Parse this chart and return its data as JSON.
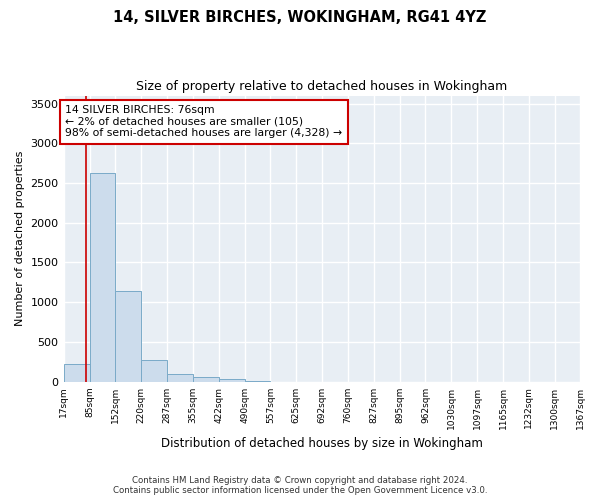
{
  "title": "14, SILVER BIRCHES, WOKINGHAM, RG41 4YZ",
  "subtitle": "Size of property relative to detached houses in Wokingham",
  "xlabel": "Distribution of detached houses by size in Wokingham",
  "ylabel": "Number of detached properties",
  "bar_color": "#ccdcec",
  "bar_edge_color": "#7aaac8",
  "background_color": "#e8eef4",
  "grid_color": "#ffffff",
  "annotation_line_color": "#cc0000",
  "annotation_box_color": "#cc0000",
  "annotation_text": "14 SILVER BIRCHES: 76sqm\n← 2% of detached houses are smaller (105)\n98% of semi-detached houses are larger (4,328) →",
  "property_size": 76,
  "footer_line1": "Contains HM Land Registry data © Crown copyright and database right 2024.",
  "footer_line2": "Contains public sector information licensed under the Open Government Licence v3.0.",
  "bin_edges": [
    17,
    85,
    152,
    220,
    287,
    355,
    422,
    490,
    557,
    625,
    692,
    760,
    827,
    895,
    962,
    1030,
    1097,
    1165,
    1232,
    1300,
    1367
  ],
  "bin_labels": [
    "17sqm",
    "85sqm",
    "152sqm",
    "220sqm",
    "287sqm",
    "355sqm",
    "422sqm",
    "490sqm",
    "557sqm",
    "625sqm",
    "692sqm",
    "760sqm",
    "827sqm",
    "895sqm",
    "962sqm",
    "1030sqm",
    "1097sqm",
    "1165sqm",
    "1232sqm",
    "1300sqm",
    "1367sqm"
  ],
  "bar_heights": [
    220,
    2630,
    1140,
    270,
    100,
    65,
    40,
    5,
    0,
    0,
    0,
    0,
    0,
    0,
    0,
    0,
    0,
    0,
    0,
    0
  ],
  "ylim": [
    0,
    3600
  ],
  "yticks": [
    0,
    500,
    1000,
    1500,
    2000,
    2500,
    3000,
    3500
  ],
  "fig_width": 6.0,
  "fig_height": 5.0,
  "dpi": 100
}
